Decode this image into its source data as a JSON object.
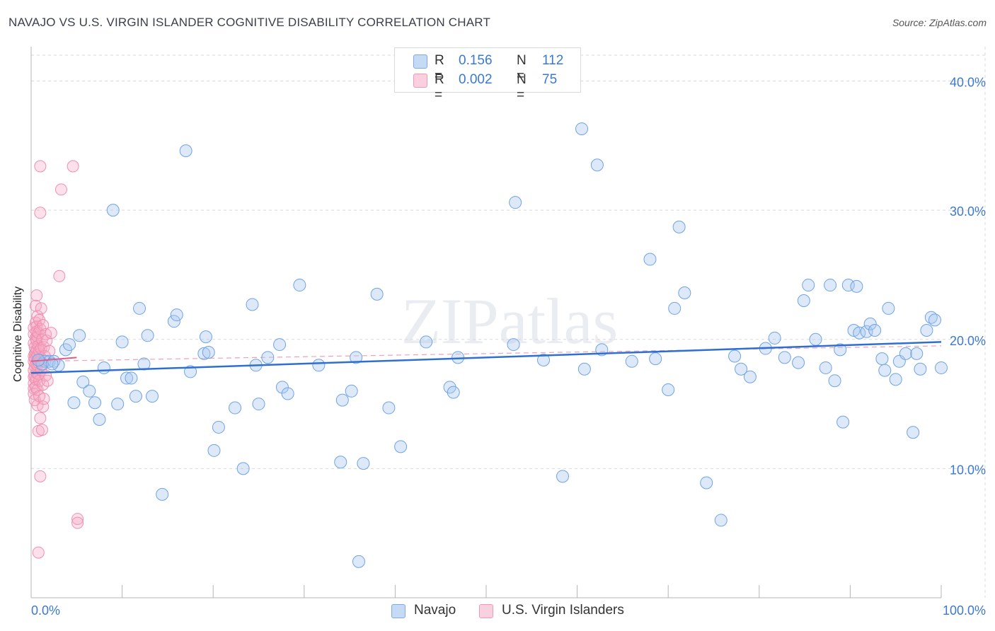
{
  "title": "NAVAJO VS U.S. VIRGIN ISLANDER COGNITIVE DISABILITY CORRELATION CHART",
  "source": "Source: ZipAtlas.com",
  "watermark": "ZIPatlas",
  "legend": {
    "rows": [
      {
        "r_label": "R =",
        "r_value": "0.156",
        "n_label": "N =",
        "n_value": "112",
        "color": "#a9c8f0"
      },
      {
        "r_label": "R =",
        "r_value": "0.002",
        "n_label": "N =",
        "n_value": "75",
        "color": "#f5b8cc"
      }
    ]
  },
  "bottom_legend": [
    {
      "label": "Navajo",
      "color": "#a9c8f0"
    },
    {
      "label": "U.S. Virgin Islanders",
      "color": "#f5b8cc"
    }
  ],
  "chart_data": {
    "type": "scatter",
    "title": "NAVAJO VS U.S. VIRGIN ISLANDER COGNITIVE DISABILITY CORRELATION CHART",
    "xlabel": "",
    "ylabel": "Cognitive Disability",
    "xlim": [
      0,
      100
    ],
    "ylim": [
      0,
      42
    ],
    "x_tick_labels": [
      "0.0%",
      "100.0%"
    ],
    "y_ticks": [
      10,
      20,
      30,
      40
    ],
    "y_tick_labels": [
      "10.0%",
      "20.0%",
      "30.0%",
      "40.0%"
    ],
    "grid": true,
    "legend_placement": "top-center",
    "series": [
      {
        "name": "Navajo",
        "color": "#6fa3e6",
        "trend": {
          "x": [
            0,
            100
          ],
          "y": [
            17.4,
            19.8
          ],
          "style": "solid",
          "color": "#2f6fd1"
        },
        "points": [
          [
            1.5,
            18.3
          ],
          [
            2.0,
            18.3
          ],
          [
            2.5,
            18.3
          ],
          [
            3.0,
            18.0
          ],
          [
            3.8,
            19.2
          ],
          [
            4.2,
            19.6
          ],
          [
            4.7,
            15.1
          ],
          [
            5.3,
            20.3
          ],
          [
            5.7,
            16.7
          ],
          [
            6.4,
            16.0
          ],
          [
            7.0,
            15.1
          ],
          [
            7.5,
            13.8
          ],
          [
            8.0,
            17.8
          ],
          [
            9.0,
            30.0
          ],
          [
            9.5,
            15.0
          ],
          [
            10.0,
            19.8
          ],
          [
            10.5,
            17.0
          ],
          [
            11.0,
            17.0
          ],
          [
            11.5,
            15.6
          ],
          [
            11.9,
            22.4
          ],
          [
            12.4,
            18.1
          ],
          [
            12.8,
            20.3
          ],
          [
            13.3,
            15.6
          ],
          [
            14.4,
            8.0
          ],
          [
            15.7,
            21.4
          ],
          [
            16.0,
            21.9
          ],
          [
            17.0,
            34.6
          ],
          [
            17.5,
            17.5
          ],
          [
            19.0,
            18.9
          ],
          [
            19.2,
            20.2
          ],
          [
            19.5,
            19.0
          ],
          [
            20.1,
            11.4
          ],
          [
            20.6,
            13.2
          ],
          [
            22.4,
            14.7
          ],
          [
            23.3,
            10.0
          ],
          [
            24.3,
            22.7
          ],
          [
            24.7,
            18.0
          ],
          [
            25.0,
            15.0
          ],
          [
            26.0,
            18.6
          ],
          [
            27.3,
            19.6
          ],
          [
            27.6,
            16.3
          ],
          [
            28.2,
            15.8
          ],
          [
            29.5,
            24.2
          ],
          [
            31.6,
            18.0
          ],
          [
            34.0,
            10.5
          ],
          [
            34.2,
            15.3
          ],
          [
            35.2,
            16.0
          ],
          [
            35.7,
            18.6
          ],
          [
            36.0,
            2.8
          ],
          [
            36.5,
            10.4
          ],
          [
            38.0,
            23.5
          ],
          [
            39.3,
            14.7
          ],
          [
            40.6,
            11.7
          ],
          [
            43.4,
            19.8
          ],
          [
            46.0,
            16.3
          ],
          [
            46.4,
            15.9
          ],
          [
            46.9,
            18.6
          ],
          [
            53.2,
            30.6
          ],
          [
            53.0,
            19.6
          ],
          [
            56.3,
            18.4
          ],
          [
            58.4,
            9.4
          ],
          [
            60.5,
            36.3
          ],
          [
            60.8,
            17.7
          ],
          [
            62.2,
            33.5
          ],
          [
            62.7,
            19.2
          ],
          [
            66.0,
            18.3
          ],
          [
            68.0,
            26.2
          ],
          [
            68.6,
            18.5
          ],
          [
            70.0,
            16.1
          ],
          [
            70.7,
            22.4
          ],
          [
            71.2,
            28.7
          ],
          [
            71.8,
            23.6
          ],
          [
            74.2,
            8.9
          ],
          [
            75.8,
            6.0
          ],
          [
            77.3,
            18.7
          ],
          [
            78.0,
            17.7
          ],
          [
            79.0,
            17.1
          ],
          [
            80.7,
            19.3
          ],
          [
            81.7,
            20.1
          ],
          [
            82.8,
            18.6
          ],
          [
            84.3,
            18.2
          ],
          [
            84.9,
            23.0
          ],
          [
            85.4,
            24.2
          ],
          [
            86.2,
            20.0
          ],
          [
            87.3,
            17.8
          ],
          [
            87.8,
            24.2
          ],
          [
            88.3,
            16.8
          ],
          [
            88.9,
            19.2
          ],
          [
            89.2,
            13.6
          ],
          [
            89.8,
            24.2
          ],
          [
            90.4,
            20.7
          ],
          [
            90.7,
            24.1
          ],
          [
            91.0,
            20.5
          ],
          [
            91.8,
            20.6
          ],
          [
            92.2,
            21.2
          ],
          [
            92.7,
            20.7
          ],
          [
            93.5,
            18.5
          ],
          [
            93.8,
            17.6
          ],
          [
            94.2,
            22.4
          ],
          [
            95.0,
            16.9
          ],
          [
            95.4,
            18.3
          ],
          [
            96.1,
            18.9
          ],
          [
            96.9,
            12.8
          ],
          [
            97.3,
            18.9
          ],
          [
            97.7,
            17.7
          ],
          [
            98.4,
            20.7
          ],
          [
            98.9,
            21.7
          ],
          [
            99.3,
            21.5
          ],
          [
            100,
            17.8
          ],
          [
            1.2,
            18.1
          ],
          [
            0.8,
            18.4
          ],
          [
            2.3,
            18.1
          ]
        ]
      },
      {
        "name": "U.S. Virgin Islanders",
        "color": "#ef8fb0",
        "trend": {
          "x": [
            0,
            5
          ],
          "y": [
            18.3,
            18.6
          ],
          "style": "solid",
          "color": "#e45a87"
        },
        "trend_extended": {
          "x": [
            0,
            100
          ],
          "y": [
            18.3,
            19.5
          ],
          "style": "dashed",
          "color": "#f0a0bb"
        },
        "points": [
          [
            0.3,
            20.9
          ],
          [
            0.3,
            20.4
          ],
          [
            0.3,
            19.7
          ],
          [
            0.3,
            18.7
          ],
          [
            0.3,
            18.3
          ],
          [
            0.3,
            17.6
          ],
          [
            0.3,
            17.1
          ],
          [
            0.3,
            16.6
          ],
          [
            0.3,
            16.2
          ],
          [
            0.3,
            15.8
          ],
          [
            0.4,
            19.4
          ],
          [
            0.4,
            18.9
          ],
          [
            0.4,
            18.5
          ],
          [
            0.4,
            17.9
          ],
          [
            0.4,
            17.2
          ],
          [
            0.4,
            15.3
          ],
          [
            0.5,
            22.6
          ],
          [
            0.5,
            21.3
          ],
          [
            0.5,
            20.1
          ],
          [
            0.5,
            19.0
          ],
          [
            0.5,
            18.1
          ],
          [
            0.5,
            16.9
          ],
          [
            0.5,
            16.3
          ],
          [
            0.6,
            23.4
          ],
          [
            0.6,
            21.0
          ],
          [
            0.6,
            20.6
          ],
          [
            0.6,
            19.9
          ],
          [
            0.6,
            19.2
          ],
          [
            0.6,
            18.6
          ],
          [
            0.6,
            17.4
          ],
          [
            0.7,
            21.8
          ],
          [
            0.7,
            20.2
          ],
          [
            0.7,
            18.8
          ],
          [
            0.7,
            18.0
          ],
          [
            0.7,
            16.1
          ],
          [
            0.7,
            14.9
          ],
          [
            0.8,
            20.5
          ],
          [
            0.8,
            19.5
          ],
          [
            0.8,
            18.2
          ],
          [
            0.8,
            17.3
          ],
          [
            0.8,
            12.9
          ],
          [
            0.8,
            3.5
          ],
          [
            0.9,
            21.5
          ],
          [
            0.9,
            19.1
          ],
          [
            0.9,
            16.8
          ],
          [
            0.9,
            15.6
          ],
          [
            1.0,
            33.4
          ],
          [
            1.0,
            29.8
          ],
          [
            1.0,
            20.8
          ],
          [
            1.0,
            18.4
          ],
          [
            1.0,
            13.9
          ],
          [
            1.0,
            9.4
          ],
          [
            1.1,
            22.4
          ],
          [
            1.1,
            19.3
          ],
          [
            1.1,
            17.6
          ],
          [
            1.2,
            20.0
          ],
          [
            1.2,
            18.0
          ],
          [
            1.2,
            13.0
          ],
          [
            1.3,
            21.1
          ],
          [
            1.3,
            16.5
          ],
          [
            1.3,
            14.8
          ],
          [
            1.4,
            19.4
          ],
          [
            1.4,
            15.4
          ],
          [
            1.5,
            18.7
          ],
          [
            1.6,
            20.4
          ],
          [
            1.6,
            17.2
          ],
          [
            1.7,
            19.9
          ],
          [
            1.8,
            16.8
          ],
          [
            2.0,
            19.1
          ],
          [
            2.2,
            20.5
          ],
          [
            3.1,
            24.9
          ],
          [
            3.3,
            31.6
          ],
          [
            4.6,
            33.4
          ],
          [
            5.1,
            6.1
          ],
          [
            5.1,
            5.8
          ]
        ]
      }
    ]
  }
}
